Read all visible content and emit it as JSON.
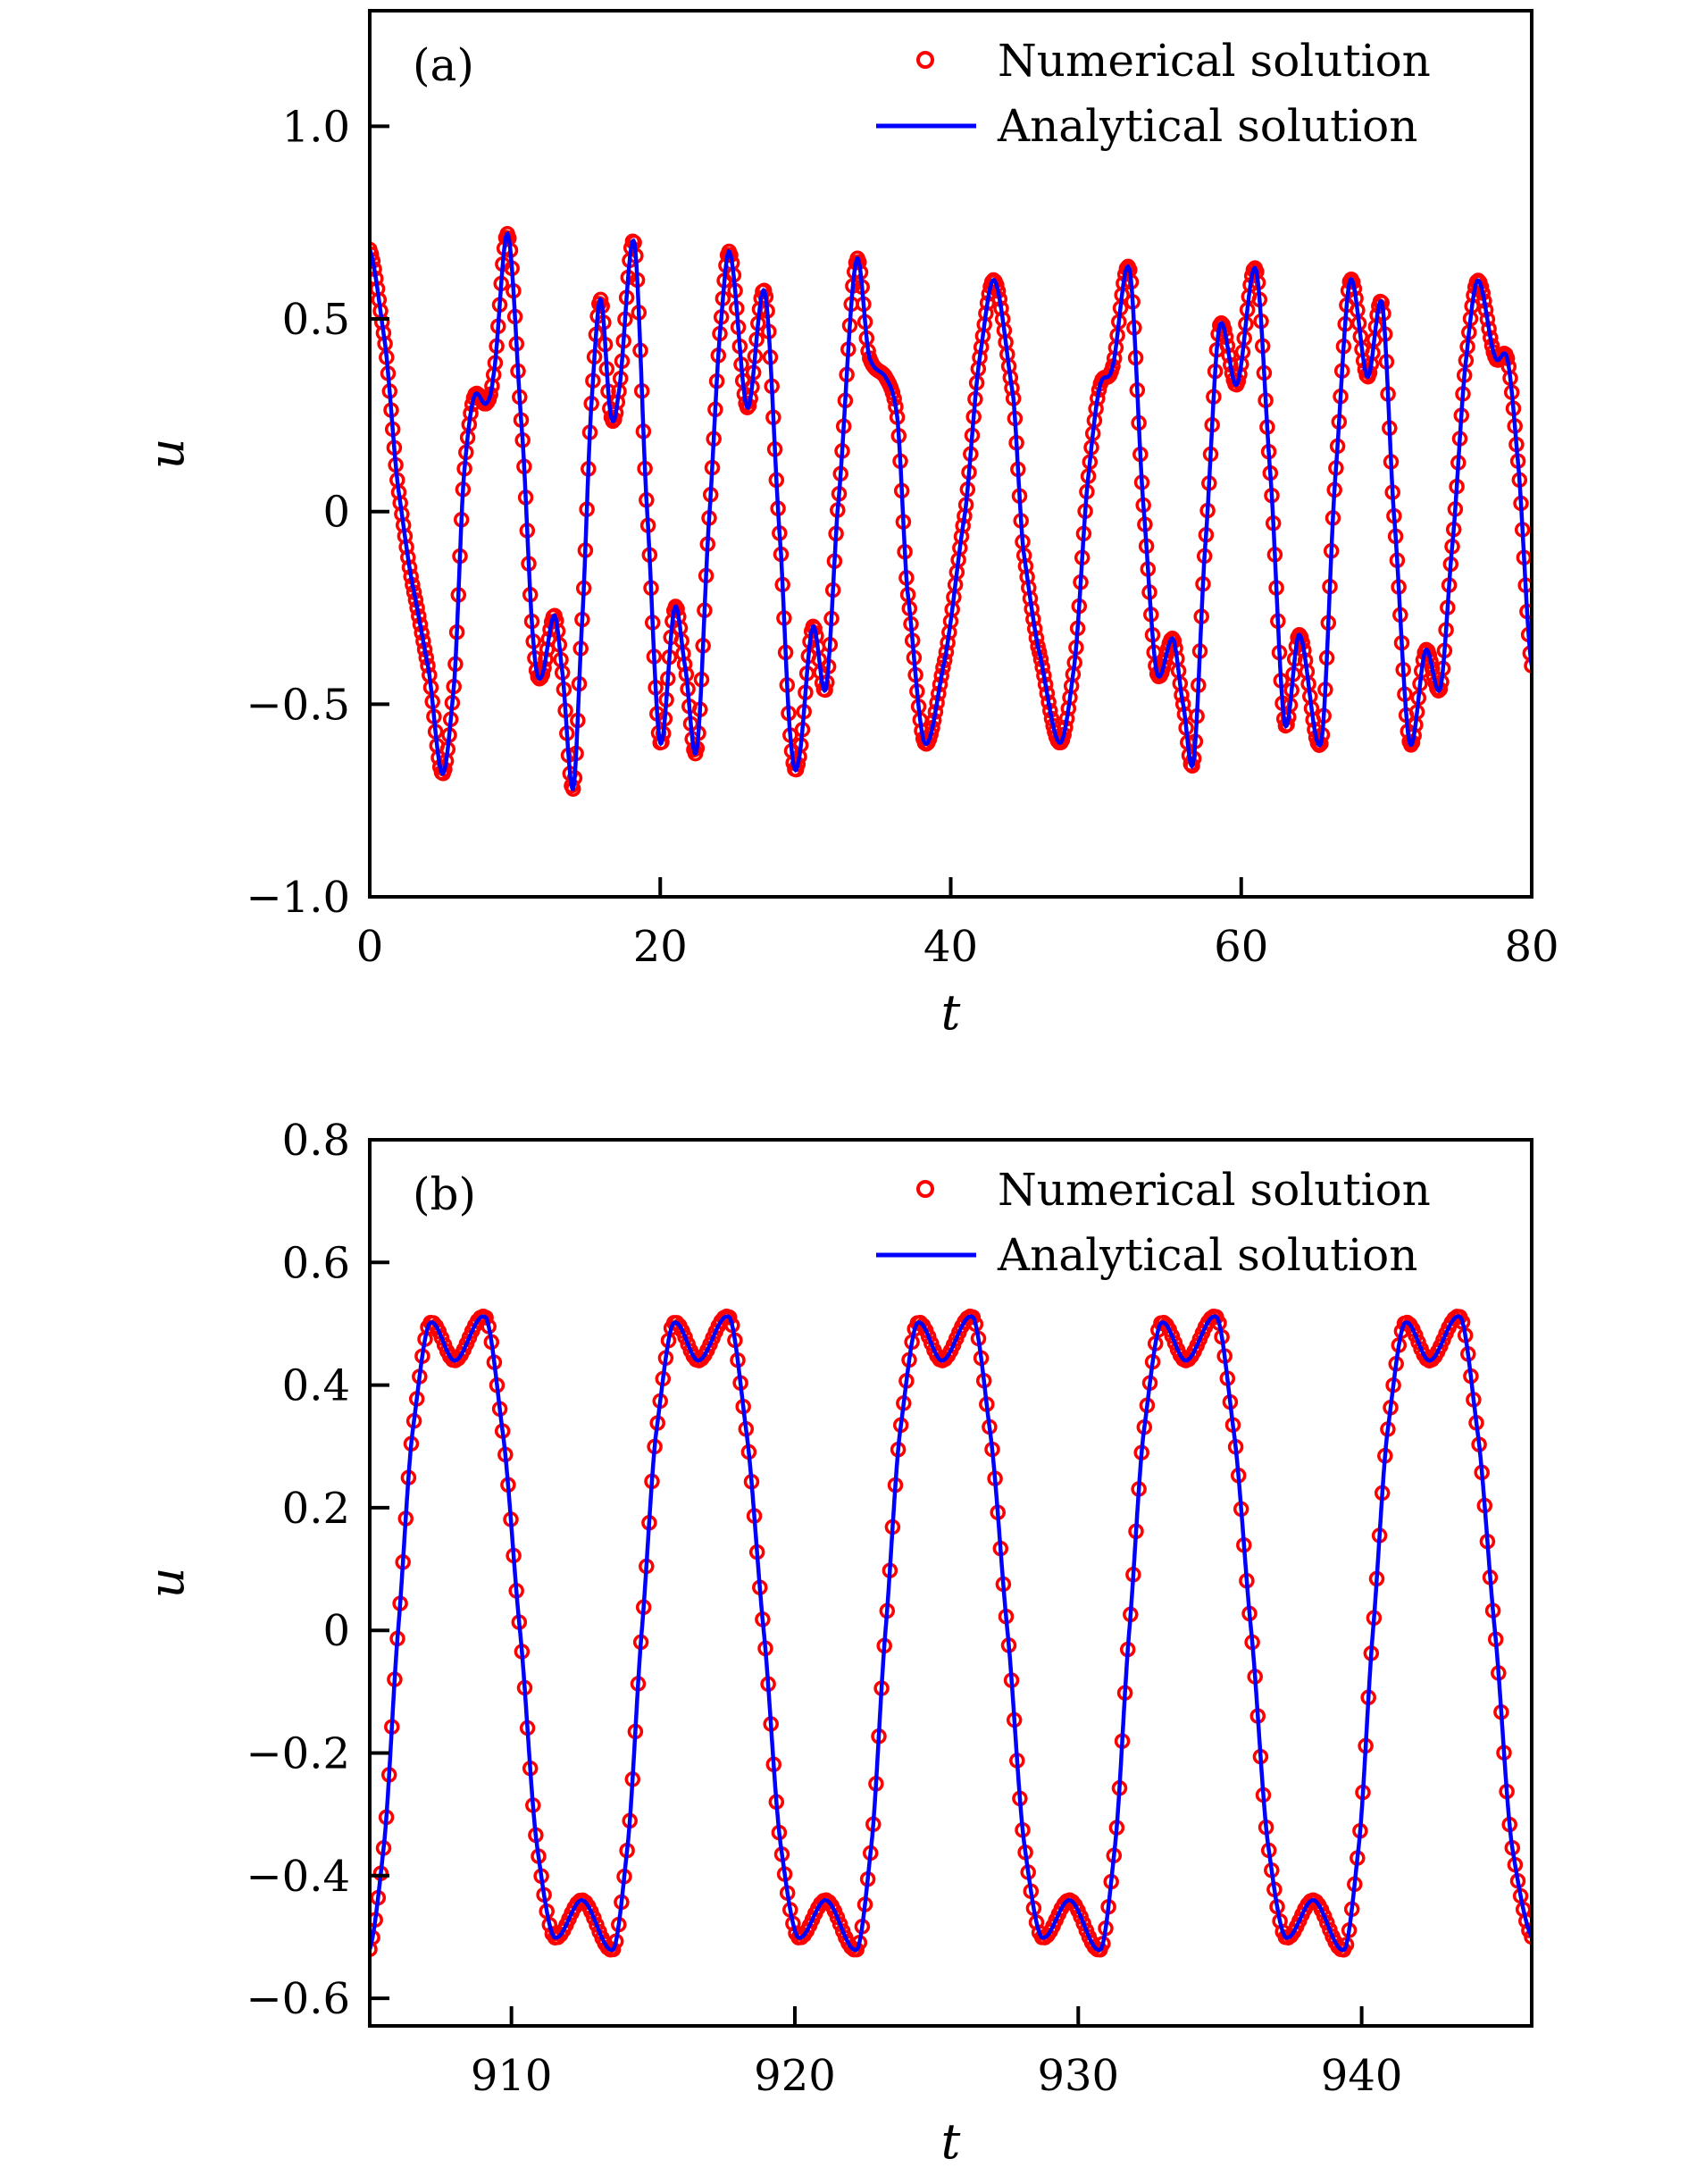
{
  "colors": {
    "numerical": "#ff0000",
    "analytical": "#0000ff",
    "axes": "#000000"
  },
  "chart_data": [
    {
      "type": "line",
      "panel_label": "(a)",
      "xlabel": "t",
      "ylabel": "u",
      "xlim": [
        0,
        80
      ],
      "ylim": [
        -1.0,
        1.3
      ],
      "xticks": [
        0,
        20,
        40,
        60,
        80
      ],
      "xtick_labels": [
        "0",
        "20",
        "40",
        "60",
        "80"
      ],
      "yticks": [
        -1.0,
        -0.5,
        0,
        0.5,
        1.0
      ],
      "ytick_labels": [
        "−1.0",
        "−0.5",
        "0",
        "0.5",
        "1.0"
      ],
      "grid": false,
      "legend_placement": "top-right",
      "series": [
        {
          "name": "Numerical solution",
          "style": "circle-markers"
        },
        {
          "name": "Analytical solution",
          "style": "solid-line"
        }
      ],
      "x": [
        0,
        1,
        2,
        3,
        4,
        5,
        5.8,
        6.5,
        7.2,
        8,
        8.5,
        9.5,
        10.5,
        11.3,
        11.8,
        12.7,
        13.2,
        14,
        14.6,
        15.3,
        15.9,
        16.6,
        17.1,
        18.2,
        19.1,
        20,
        21,
        21.7,
        22.5,
        23.4,
        24.2,
        24.8,
        26,
        27.2,
        28.3,
        29,
        29.5,
        30.5,
        31.4,
        32.2,
        33.5,
        34.4,
        35.5,
        36.3,
        37,
        38.2,
        39.5,
        41,
        42,
        43,
        44.3,
        45,
        46,
        47.5,
        48.5,
        49.5,
        50.3,
        51.1,
        52.3,
        53.3,
        54.2,
        55.3,
        56,
        56.7,
        57.5,
        58.5,
        59.7,
        61,
        62,
        63,
        64,
        65.5,
        66.5,
        67.5,
        68.7,
        69.7,
        70.5,
        71.6,
        72.7,
        73.7,
        74.5,
        75.5,
        76.3,
        77.5,
        78.3,
        79,
        80
      ],
      "u": [
        0.68,
        0.45,
        0.05,
        -0.2,
        -0.4,
        -0.68,
        -0.45,
        0.1,
        0.3,
        0.28,
        0.35,
        0.72,
        0.2,
        -0.35,
        -0.43,
        -0.27,
        -0.4,
        -0.72,
        -0.3,
        0.3,
        0.55,
        0.25,
        0.3,
        0.7,
        0.0,
        -0.6,
        -0.25,
        -0.4,
        -0.62,
        0.0,
        0.5,
        0.67,
        0.27,
        0.57,
        -0.1,
        -0.6,
        -0.65,
        -0.3,
        -0.46,
        0.0,
        0.65,
        0.4,
        0.35,
        0.25,
        -0.2,
        -0.6,
        -0.4,
        0.0,
        0.4,
        0.6,
        0.3,
        -0.1,
        -0.35,
        -0.6,
        -0.4,
        0.1,
        0.33,
        0.37,
        0.63,
        0.0,
        -0.42,
        -0.33,
        -0.5,
        -0.65,
        -0.1,
        0.48,
        0.33,
        0.63,
        0.1,
        -0.55,
        -0.32,
        -0.6,
        0.1,
        0.6,
        0.35,
        0.54,
        0.0,
        -0.6,
        -0.36,
        -0.46,
        -0.1,
        0.4,
        0.6,
        0.4,
        0.4,
        0.15,
        -0.4
      ]
    },
    {
      "type": "line",
      "panel_label": "(b)",
      "xlabel": "t",
      "ylabel": "u",
      "xlim": [
        905,
        946
      ],
      "ylim": [
        -0.645,
        0.8
      ],
      "xticks": [
        910,
        920,
        930,
        940
      ],
      "xtick_labels": [
        "910",
        "920",
        "930",
        "940"
      ],
      "yticks": [
        -0.6,
        -0.4,
        -0.2,
        0,
        0.2,
        0.4,
        0.6,
        0.8
      ],
      "ytick_labels": [
        "−0.6",
        "−0.4",
        "−0.2",
        "0",
        "0.2",
        "0.4",
        "0.6",
        "0.8"
      ],
      "grid": false,
      "legend_placement": "top-right",
      "series": [
        {
          "name": "Numerical solution",
          "style": "circle-markers"
        },
        {
          "name": "Analytical solution",
          "style": "solid-line"
        }
      ],
      "x": [
        905,
        905.5,
        906,
        906.5,
        907.1,
        908,
        909.1,
        909.7,
        910.3,
        910.9,
        911.5,
        912.5,
        913.6,
        914.1,
        914.6,
        915.1,
        915.7,
        916.6,
        917.7,
        918.3,
        918.9,
        919.5,
        920.1,
        921.1,
        922.2,
        922.7,
        923.2,
        923.7,
        924.3,
        925.2,
        926.3,
        926.9,
        927.5,
        928.1,
        928.7,
        929.7,
        930.8,
        931.3,
        931.8,
        932.3,
        932.9,
        933.8,
        934.9,
        935.5,
        936.1,
        936.7,
        937.3,
        938.3,
        939.4,
        939.9,
        940.4,
        940.9,
        941.5,
        942.4,
        943.5,
        944.1,
        944.7,
        945.3,
        946
      ],
      "u": [
        -0.52,
        -0.35,
        0,
        0.32,
        0.5,
        0.44,
        0.51,
        0.32,
        0,
        -0.35,
        -0.5,
        -0.44,
        -0.52,
        -0.35,
        0,
        0.32,
        0.5,
        0.44,
        0.51,
        0.32,
        0,
        -0.35,
        -0.5,
        -0.44,
        -0.52,
        -0.35,
        0,
        0.32,
        0.5,
        0.44,
        0.51,
        0.32,
        0,
        -0.35,
        -0.5,
        -0.44,
        -0.52,
        -0.35,
        0,
        0.32,
        0.5,
        0.44,
        0.51,
        0.32,
        0,
        -0.35,
        -0.5,
        -0.44,
        -0.52,
        -0.35,
        0,
        0.32,
        0.5,
        0.44,
        0.51,
        0.32,
        0,
        -0.35,
        -0.5
      ]
    }
  ]
}
